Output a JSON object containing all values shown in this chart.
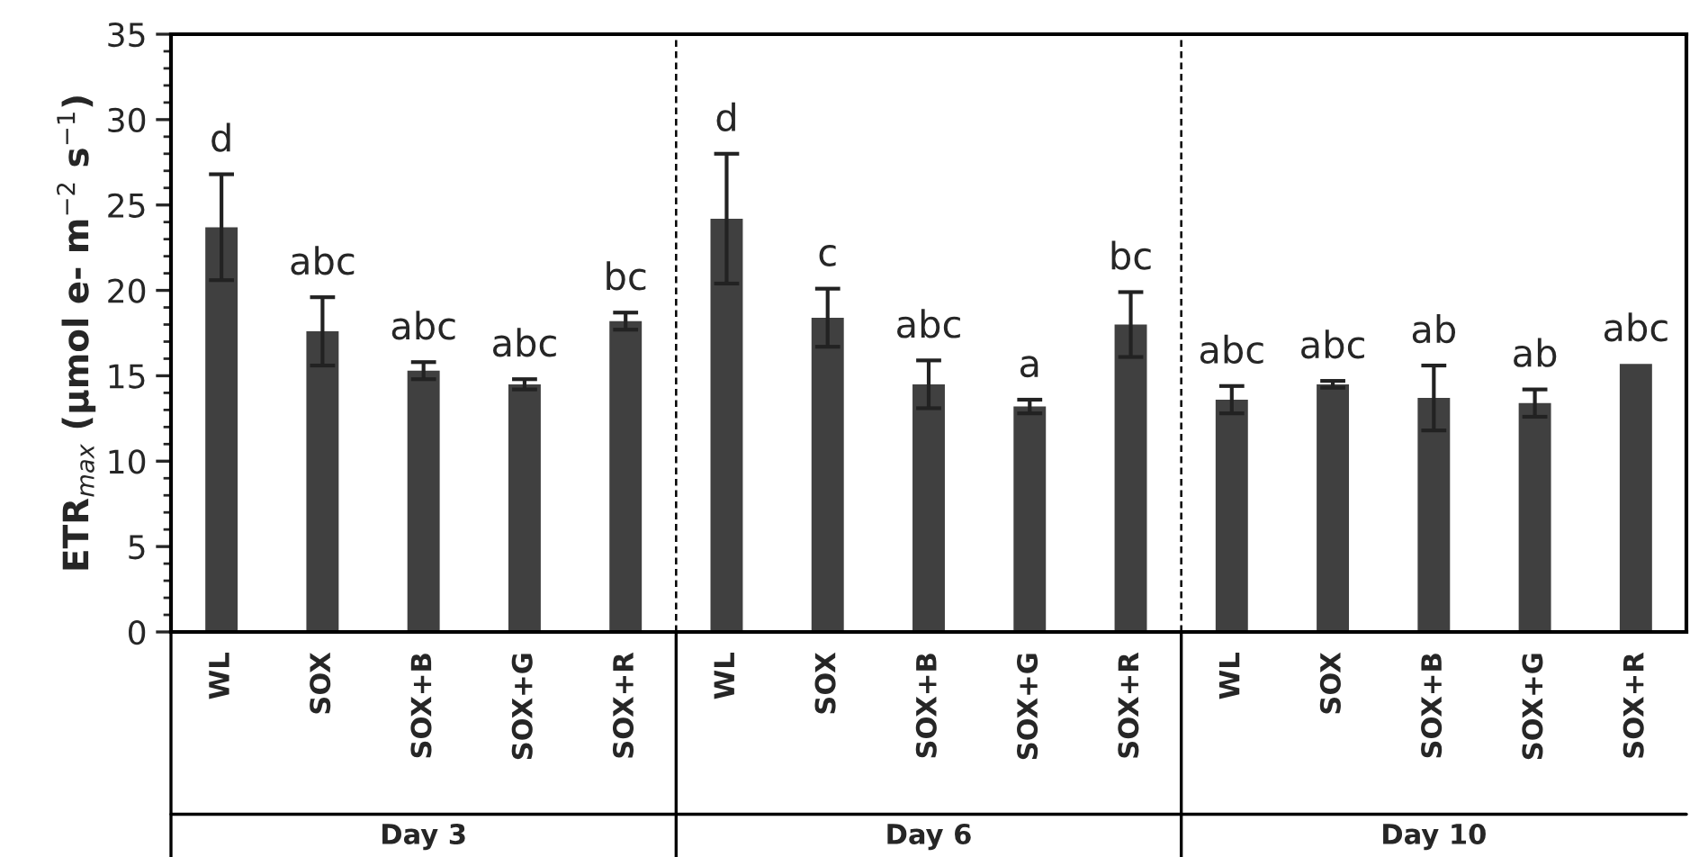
{
  "chart_data": {
    "type": "bar",
    "ylabel": "ETR$_{max}$ (µmol e- m$^{−2}$ s$^{−1}$)",
    "categories": [
      "WL",
      "SOX",
      "SOX+B",
      "SOX+G",
      "SOX+R",
      "WL",
      "SOX",
      "SOX+B",
      "SOX+G",
      "SOX+R",
      "WL",
      "SOX",
      "SOX+B",
      "SOX+G",
      "SOX+R"
    ],
    "values": [
      23.7,
      17.6,
      15.3,
      14.5,
      18.2,
      24.2,
      18.4,
      14.5,
      13.2,
      18.0,
      13.6,
      14.5,
      13.7,
      13.4,
      15.7
    ],
    "errors": [
      3.1,
      2.0,
      0.5,
      0.3,
      0.5,
      3.8,
      1.7,
      1.4,
      0.4,
      1.9,
      0.8,
      0.2,
      1.9,
      0.8,
      null
    ],
    "value_labels": [
      "d",
      "abc",
      "abc",
      "abc",
      "bc",
      "d",
      "c",
      "abc",
      "a",
      "bc",
      "abc",
      "abc",
      "ab",
      "ab",
      "abc"
    ],
    "color": "#404040",
    "ylim": [
      0,
      35
    ],
    "yticks": [
      0,
      5,
      10,
      15,
      20,
      25,
      30,
      35
    ],
    "annotations": [
      "Day 3",
      "Day 6",
      "Day 10"
    ]
  }
}
